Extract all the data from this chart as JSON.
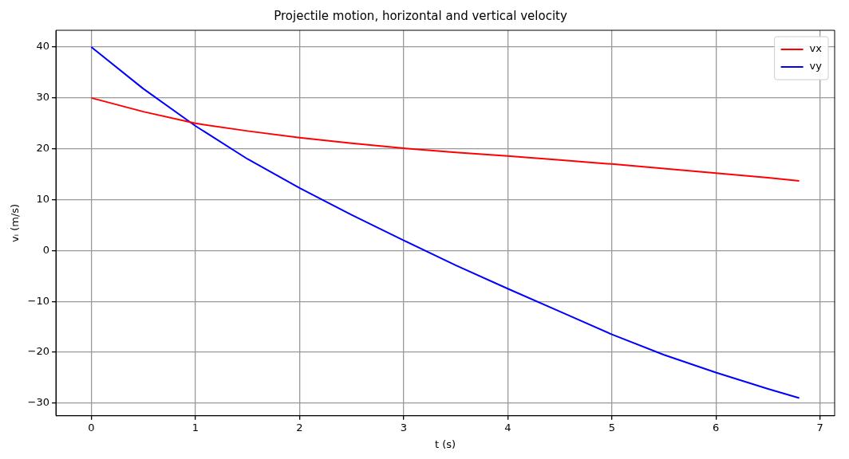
{
  "chart_data": {
    "type": "line",
    "title": "Projectile motion, horizontal and vertical velocity",
    "xlabel": "t (s)",
    "ylabel": "vᵢ (m/s)",
    "x": [
      0,
      0.5,
      1,
      1.5,
      2,
      2.5,
      3,
      3.5,
      4,
      4.5,
      5,
      5.5,
      6,
      6.5,
      6.8
    ],
    "series": [
      {
        "name": "vx",
        "color": "#ff0000",
        "values": [
          30,
          27.3,
          25,
          23.5,
          22.2,
          21.1,
          20.1,
          19.3,
          18.6,
          17.8,
          17,
          16.1,
          15.2,
          14.3,
          13.7
        ]
      },
      {
        "name": "vy",
        "color": "#0000ff",
        "values": [
          40,
          31.8,
          24.5,
          18,
          12.3,
          7,
          2,
          -2.9,
          -7.5,
          -12,
          -16.5,
          -20.5,
          -24,
          -27.2,
          -29
        ]
      }
    ],
    "xlim": [
      -0.34,
      7.14
    ],
    "xticks": [
      0,
      1,
      2,
      3,
      4,
      5,
      6,
      7
    ],
    "ylim": [
      -32.5,
      43.3
    ],
    "yticks": [
      {
        "value": -30,
        "label": "−30"
      },
      {
        "value": -20,
        "label": "−20"
      },
      {
        "value": -10,
        "label": "−10"
      },
      0,
      10,
      20,
      30,
      40
    ],
    "grid": true,
    "legend": "top right",
    "marker": "none",
    "line_style": "solid"
  }
}
